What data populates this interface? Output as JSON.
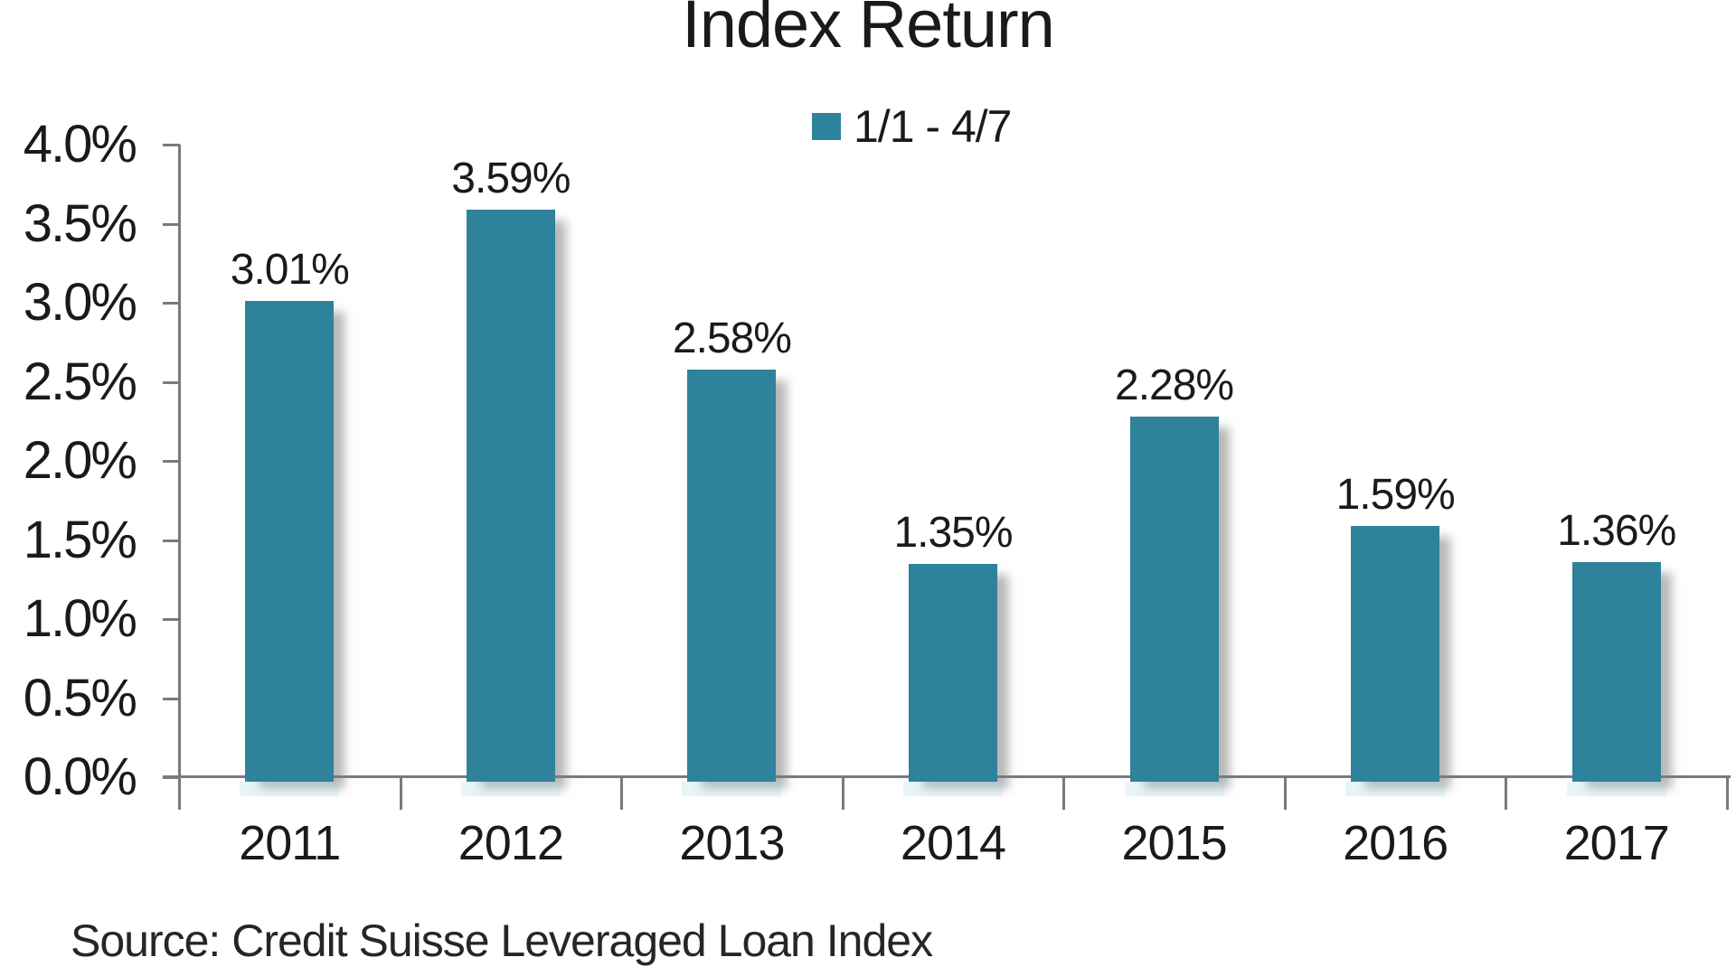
{
  "title": "Index Return",
  "legend": {
    "label": "1/1 - 4/7"
  },
  "source": "Source: Credit Suisse Leveraged Loan Index",
  "colors": {
    "bar": "#2F829B",
    "axis": "#7A7A7A",
    "text": "#1A1A1A"
  },
  "chart_data": {
    "type": "bar",
    "title": "Index Return",
    "legend_entries": [
      "1/1 - 4/7"
    ],
    "legend_position": "top",
    "categories": [
      "2011",
      "2012",
      "2013",
      "2014",
      "2015",
      "2016",
      "2017"
    ],
    "values": [
      3.01,
      3.59,
      2.58,
      1.35,
      2.28,
      1.59,
      1.36
    ],
    "value_labels": [
      "3.01%",
      "3.59%",
      "2.58%",
      "1.35%",
      "2.28%",
      "1.59%",
      "1.36%"
    ],
    "ytick_labels": [
      "4.0%",
      "3.5%",
      "3.0%",
      "2.5%",
      "2.0%",
      "1.5%",
      "1.0%",
      "0.5%",
      "0.0%"
    ],
    "ylim": [
      0,
      4.0
    ],
    "xlabel": "",
    "ylabel": "",
    "grid": false,
    "bar_color": "#2F829B",
    "source_note": "Source: Credit Suisse Leveraged Loan Index"
  }
}
